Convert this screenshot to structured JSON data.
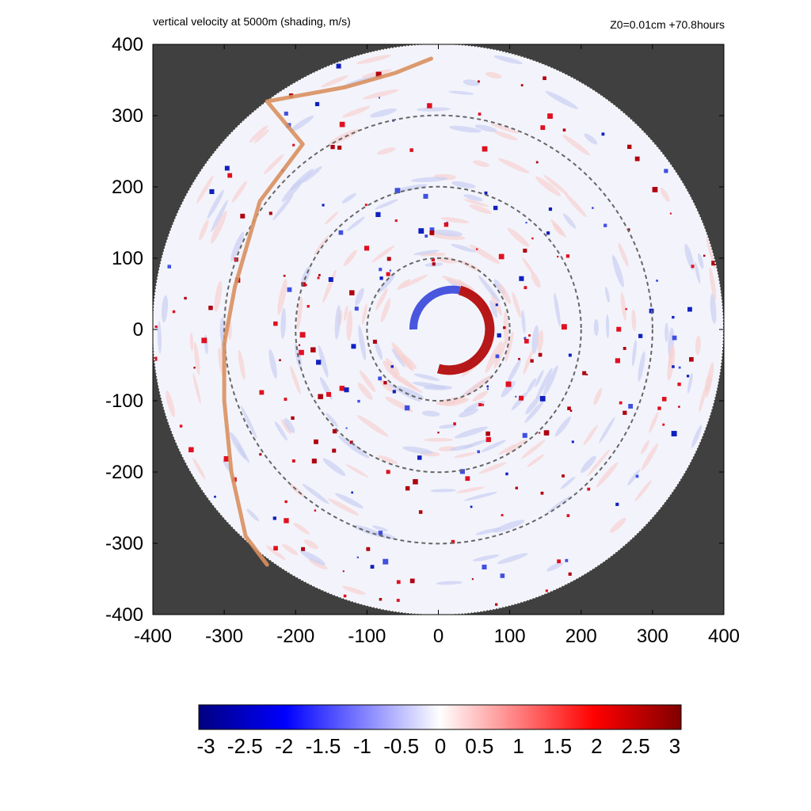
{
  "header": {
    "left_label": "vertical velocity at 5000m (shading, m/s)",
    "right_label": "Z0=0.01cm  +70.8hours"
  },
  "chart_data": {
    "type": "heatmap",
    "title": "vertical velocity at 5000m (shading, m/s)",
    "annotation": "Z0=0.01cm  +70.8hours",
    "xlabel": "",
    "ylabel": "",
    "xlim": [
      -400,
      400
    ],
    "ylim": [
      -400,
      400
    ],
    "x_ticks": [
      -400,
      -300,
      -200,
      -100,
      0,
      100,
      200,
      300,
      400
    ],
    "y_ticks": [
      400,
      300,
      200,
      100,
      0,
      -100,
      -200,
      -300,
      -400
    ],
    "domain_radius": 400,
    "background_color": "#404040",
    "reference_circle_radii": [
      100,
      200,
      300
    ],
    "colorbar": {
      "min": -3,
      "max": 3,
      "ticks": [
        "-3",
        "-2.5",
        "-2",
        "-1.5",
        "-1",
        "-0.5",
        "0",
        "0.5",
        "1",
        "1.5",
        "2",
        "2.5",
        "3"
      ],
      "colors": [
        "#000080",
        "#0000ff",
        "#ffffff",
        "#ff0000",
        "#800000"
      ],
      "orientation": "horizontal",
      "placement": "bottom"
    },
    "features": {
      "eyewall": {
        "center": [
          20,
          0
        ],
        "radius": 55,
        "updraft_side": "east-south",
        "downdraft_side": "north-west"
      },
      "rainbands": "scattered red updraft cells and blue downdraft cells spiraling outward between radius 100 and 400",
      "trajectory": {
        "color": "#d9905f",
        "points": [
          [
            -10,
            380
          ],
          [
            -60,
            360
          ],
          [
            -130,
            340
          ],
          [
            -240,
            320
          ],
          [
            -190,
            260
          ],
          [
            -250,
            180
          ],
          [
            -285,
            60
          ],
          [
            -300,
            -20
          ],
          [
            -300,
            -100
          ],
          [
            -290,
            -200
          ],
          [
            -270,
            -290
          ],
          [
            -240,
            -330
          ]
        ]
      }
    }
  }
}
